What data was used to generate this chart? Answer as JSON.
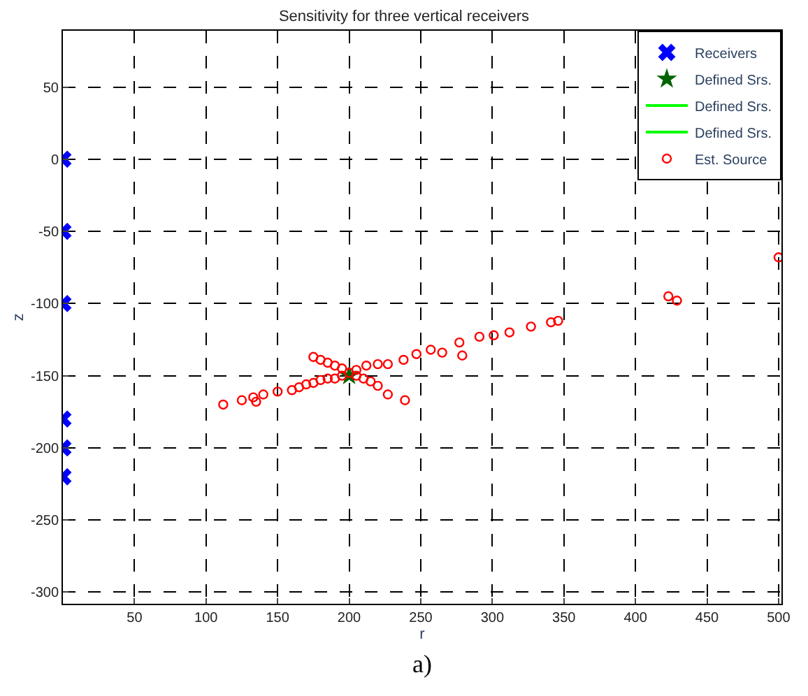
{
  "chart_data": {
    "type": "scatter",
    "title": "Sensitivity for three vertical receivers",
    "xlabel": "r",
    "ylabel": "z",
    "annotations": [
      "a)"
    ],
    "xlim": [
      0,
      502
    ],
    "xticks": [
      50,
      100,
      150,
      200,
      250,
      300,
      350,
      400,
      450,
      500
    ],
    "ylim": [
      -308,
      89
    ],
    "yticks": [
      50,
      0,
      -50,
      -100,
      -150,
      -200,
      -250,
      -300
    ],
    "grid": true,
    "legend": "top right",
    "series": [
      {
        "name": "Receivers",
        "color": "#0000ff",
        "marker": "cross",
        "x": [
          0,
          0,
          0,
          0,
          0,
          0
        ],
        "values": [
          0,
          -50,
          -100,
          -180,
          -200,
          -220
        ]
      },
      {
        "name": "Defined Srs.",
        "color": "#006400",
        "marker": "star",
        "x": [
          200
        ],
        "values": [
          -150
        ]
      },
      {
        "name": "Defined Srs.",
        "color": "#00ff00",
        "type": "line",
        "marker": "none"
      },
      {
        "name": "Defined Srs.",
        "color": "#00ff00",
        "type": "line",
        "marker": "none"
      },
      {
        "name": "Est. Source",
        "color": "#ff0000",
        "marker": "circle",
        "x": [
          112,
          125,
          133,
          135,
          140,
          150,
          160,
          165,
          170,
          175,
          180,
          185,
          190,
          195,
          200,
          175,
          180,
          185,
          190,
          195,
          205,
          210,
          215,
          220,
          227,
          239,
          205,
          212,
          220,
          227,
          238,
          247,
          257,
          265,
          277,
          279,
          291,
          301,
          312,
          327,
          341,
          346,
          423,
          429,
          500
        ],
        "values": [
          -170,
          -167,
          -165,
          -168,
          -163,
          -161,
          -160,
          -158,
          -156,
          -155,
          -153,
          -152,
          -152,
          -150,
          -148,
          -137,
          -139,
          -141,
          -143,
          -145,
          -150,
          -152,
          -154,
          -157,
          -163,
          -167,
          -146,
          -143,
          -142,
          -142,
          -139,
          -135,
          -132,
          -134,
          -127,
          -136,
          -123,
          -122,
          -120,
          -116,
          -113,
          -112,
          -95,
          -98,
          -68
        ]
      }
    ]
  }
}
